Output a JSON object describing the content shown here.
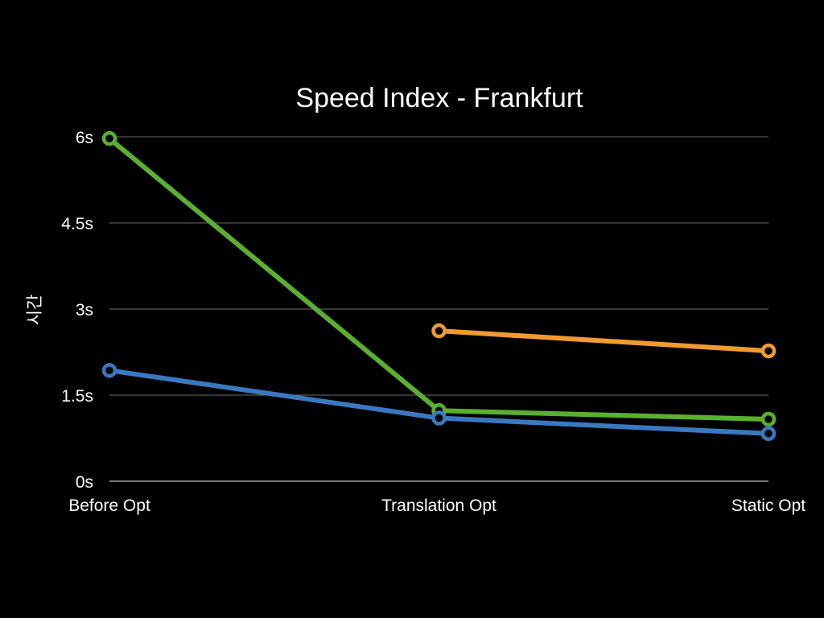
{
  "chart_data": {
    "type": "line",
    "title": "Speed Index - Frankfurt",
    "xlabel": "",
    "ylabel": "시간",
    "categories": [
      "Before Opt",
      "Translation Opt",
      "Static Opt"
    ],
    "y_tick_labels": [
      "0s",
      "1.5s",
      "3s",
      "4.5s",
      "6s"
    ],
    "y_ticks": [
      0,
      1.5,
      3,
      4.5,
      6
    ],
    "ylim": [
      0,
      6
    ],
    "unit": "s",
    "grid": true,
    "legend": "none",
    "series": [
      {
        "color": "#5ab030",
        "values": [
          5.97,
          1.23,
          1.08
        ]
      },
      {
        "color": "#3a78c0",
        "values": [
          1.93,
          1.1,
          0.83
        ]
      },
      {
        "color": "#f09a30",
        "values": [
          null,
          2.62,
          2.27
        ]
      }
    ]
  }
}
